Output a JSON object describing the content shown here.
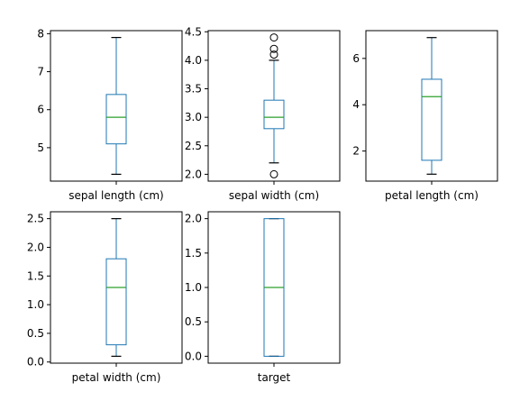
{
  "colors": {
    "box": "#1f77b4",
    "median": "#2ca02c",
    "whisker": "#1f77b4",
    "cap": "#000000",
    "flier": "#000000",
    "axes": "#000000",
    "background": "#ffffff"
  },
  "chart_data": [
    {
      "type": "box",
      "xlabel": "sepal length (cm)",
      "ylim": [
        4.12,
        8.08
      ],
      "yticks": [
        5,
        6,
        7,
        8
      ],
      "ytick_labels": [
        "5",
        "6",
        "7",
        "8"
      ],
      "box": {
        "whisker_low": 4.3,
        "q1": 5.1,
        "median": 5.8,
        "q3": 6.4,
        "whisker_high": 7.9,
        "fliers": []
      }
    },
    {
      "type": "box",
      "xlabel": "sepal width (cm)",
      "ylim": [
        1.88,
        4.52
      ],
      "yticks": [
        2.0,
        2.5,
        3.0,
        3.5,
        4.0,
        4.5
      ],
      "ytick_labels": [
        "2.0",
        "2.5",
        "3.0",
        "3.5",
        "4.0",
        "4.5"
      ],
      "box": {
        "whisker_low": 2.2,
        "q1": 2.8,
        "median": 3.0,
        "q3": 3.3,
        "whisker_high": 4.0,
        "fliers": [
          2.0,
          4.1,
          4.2,
          4.4
        ]
      }
    },
    {
      "type": "box",
      "xlabel": "petal length (cm)",
      "ylim": [
        0.7,
        7.2
      ],
      "yticks": [
        2,
        4,
        6
      ],
      "ytick_labels": [
        "2",
        "4",
        "6"
      ],
      "box": {
        "whisker_low": 1.0,
        "q1": 1.6,
        "median": 4.35,
        "q3": 5.1,
        "whisker_high": 6.9,
        "fliers": []
      }
    },
    {
      "type": "box",
      "xlabel": "petal width (cm)",
      "ylim": [
        -0.02,
        2.62
      ],
      "yticks": [
        0.0,
        0.5,
        1.0,
        1.5,
        2.0,
        2.5
      ],
      "ytick_labels": [
        "0.0",
        "0.5",
        "1.0",
        "1.5",
        "2.0",
        "2.5"
      ],
      "box": {
        "whisker_low": 0.1,
        "q1": 0.3,
        "median": 1.3,
        "q3": 1.8,
        "whisker_high": 2.5,
        "fliers": []
      }
    },
    {
      "type": "box",
      "xlabel": "target",
      "ylim": [
        -0.1,
        2.1
      ],
      "yticks": [
        0.0,
        0.5,
        1.0,
        1.5,
        2.0
      ],
      "ytick_labels": [
        "0.0",
        "0.5",
        "1.0",
        "1.5",
        "2.0"
      ],
      "box": {
        "whisker_low": 0.0,
        "q1": 0.0,
        "median": 1.0,
        "q3": 2.0,
        "whisker_high": 2.0,
        "fliers": []
      }
    }
  ]
}
